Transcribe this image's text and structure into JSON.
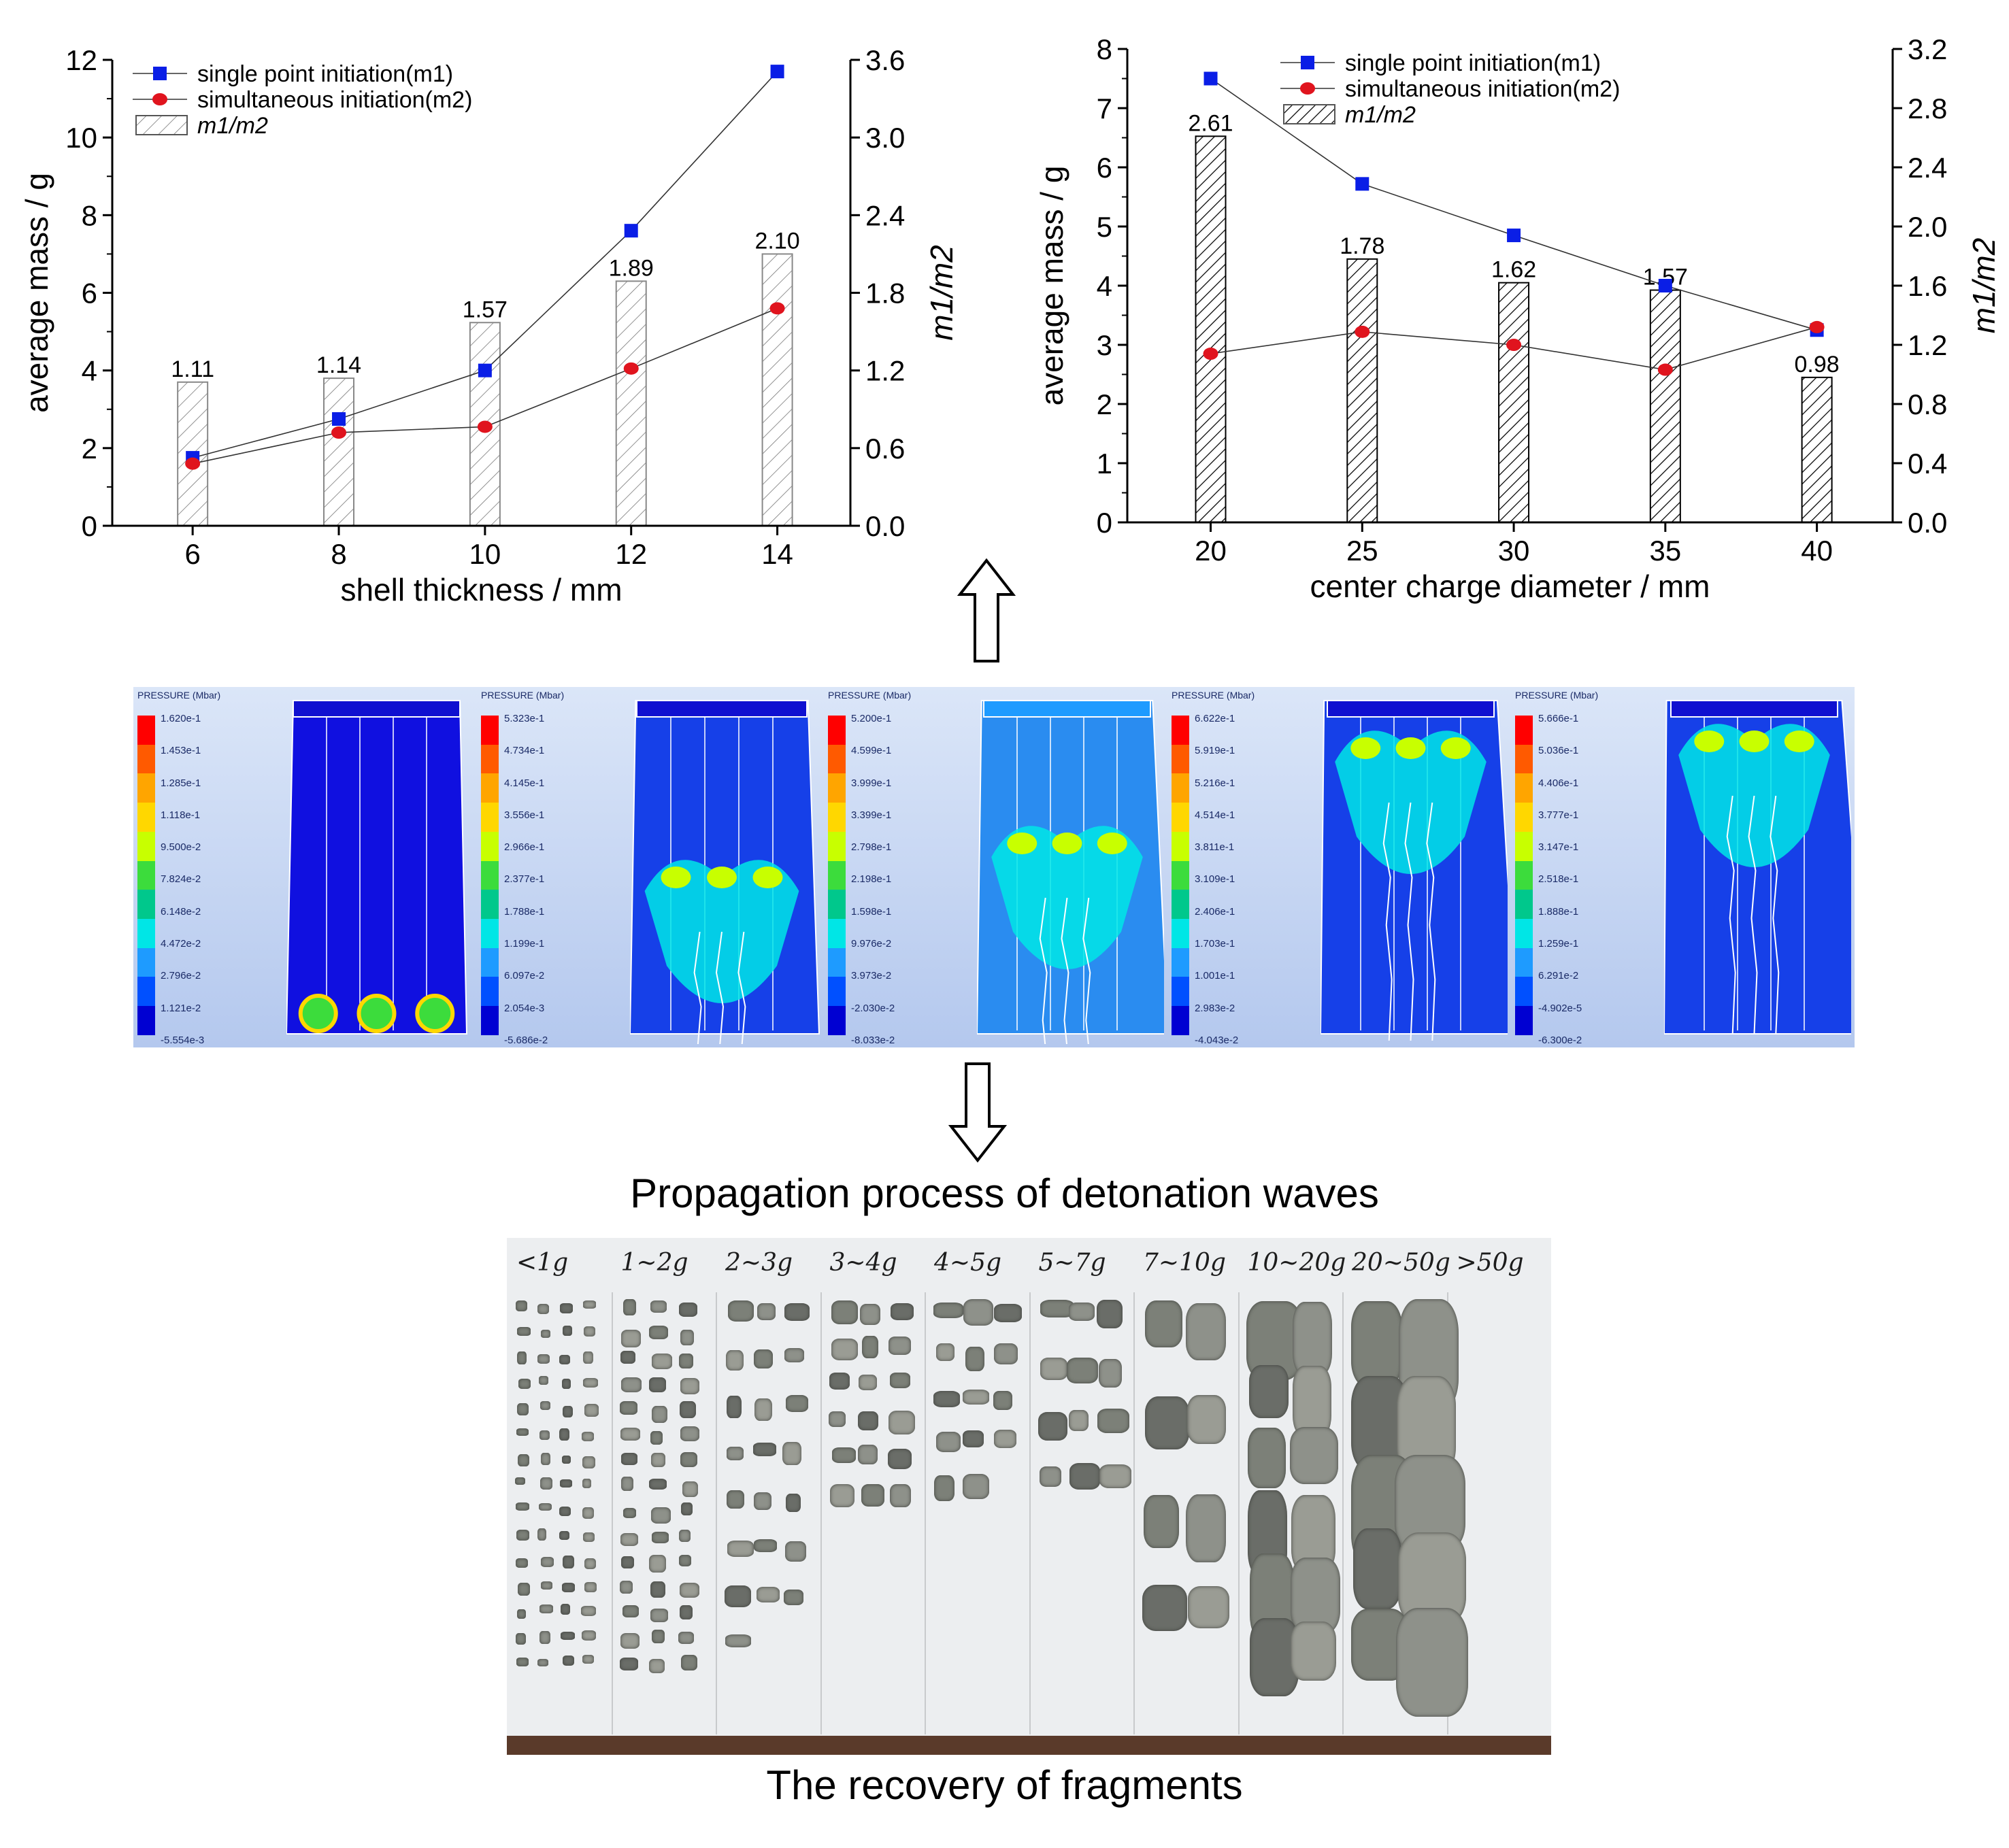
{
  "chart_data": [
    {
      "type": "bar+line",
      "xlabel": "shell thickness / mm",
      "ylabel": "average mass / g",
      "y2label": "m1/m2",
      "categories": [
        6,
        8,
        10,
        12,
        14
      ],
      "ylim": [
        0,
        12
      ],
      "y2lim": [
        0,
        3.6
      ],
      "yticks": [
        "0",
        "2",
        "4",
        "6",
        "8",
        "10",
        "12"
      ],
      "y2ticks": [
        "0.0",
        "0.6",
        "1.2",
        "1.8",
        "2.4",
        "3.0",
        "3.6"
      ],
      "xticks": [
        "6",
        "8",
        "10",
        "12",
        "14"
      ],
      "series": [
        {
          "name": "single point initiation(m1)",
          "kind": "line",
          "marker": "square",
          "color": "#0a1ee6",
          "axis": "left",
          "values": [
            1.75,
            2.75,
            4.0,
            7.6,
            11.7
          ]
        },
        {
          "name": "simultaneous initiation(m2)",
          "kind": "line",
          "marker": "circle",
          "color": "#e0141e",
          "axis": "left",
          "values": [
            1.6,
            2.4,
            2.55,
            4.05,
            5.6
          ]
        },
        {
          "name": "m1/m2",
          "kind": "bar",
          "pattern": "light-hatch",
          "axis": "right",
          "values": [
            1.11,
            1.14,
            1.57,
            1.89,
            2.1
          ],
          "labels": [
            "1.11",
            "1.14",
            "1.57",
            "1.89",
            "2.10"
          ]
        }
      ],
      "legend": [
        "single point initiation(m1)",
        "simultaneous initiation(m2)",
        "m1/m2"
      ],
      "legend_placement": "top-left"
    },
    {
      "type": "bar+line",
      "xlabel": "center charge diameter / mm",
      "ylabel": "average mass / g",
      "y2label": "m1/m2",
      "categories": [
        20,
        25,
        30,
        35,
        40
      ],
      "ylim": [
        0,
        8
      ],
      "y2lim": [
        0,
        3.2
      ],
      "yticks": [
        "0",
        "1",
        "2",
        "3",
        "4",
        "5",
        "6",
        "7",
        "8"
      ],
      "y2ticks": [
        "0.0",
        "0.4",
        "0.8",
        "1.2",
        "1.6",
        "2.0",
        "2.4",
        "2.8",
        "3.2"
      ],
      "xticks": [
        "20",
        "25",
        "30",
        "35",
        "40"
      ],
      "series": [
        {
          "name": "single point initiation(m1)",
          "kind": "line",
          "marker": "square",
          "color": "#0a1ee6",
          "axis": "left",
          "values": [
            7.5,
            5.72,
            4.85,
            4.0,
            3.25
          ]
        },
        {
          "name": "simultaneous initiation(m2)",
          "kind": "line",
          "marker": "circle",
          "color": "#e0141e",
          "axis": "left",
          "values": [
            2.85,
            3.22,
            3.0,
            2.58,
            3.3
          ]
        },
        {
          "name": "m1/m2",
          "kind": "bar",
          "pattern": "dense-hatch",
          "axis": "right",
          "values": [
            2.61,
            1.78,
            1.62,
            1.57,
            0.98
          ],
          "labels": [
            "2.61",
            "1.78",
            "1.62",
            "1.57",
            "0.98"
          ]
        }
      ],
      "legend": [
        "single point initiation(m1)",
        "simultaneous initiation(m2)",
        "m1/m2"
      ],
      "legend_placement": "top-left"
    }
  ],
  "simulation": {
    "panels": [
      {
        "title": "PRESSURE (Mbar)",
        "values": [
          "1.620e-1",
          "1.453e-1",
          "1.285e-1",
          "1.118e-1",
          "9.500e-2",
          "7.824e-2",
          "6.148e-2",
          "4.472e-2",
          "2.796e-2",
          "1.121e-2",
          "-5.554e-3"
        ]
      },
      {
        "title": "PRESSURE (Mbar)",
        "values": [
          "5.323e-1",
          "4.734e-1",
          "4.145e-1",
          "3.556e-1",
          "2.966e-1",
          "2.377e-1",
          "1.788e-1",
          "1.199e-1",
          "6.097e-2",
          "2.054e-3",
          "-5.686e-2"
        ]
      },
      {
        "title": "PRESSURE (Mbar)",
        "values": [
          "5.200e-1",
          "4.599e-1",
          "3.999e-1",
          "3.399e-1",
          "2.798e-1",
          "2.198e-1",
          "1.598e-1",
          "9.976e-2",
          "3.973e-2",
          "-2.030e-2",
          "-8.033e-2"
        ]
      },
      {
        "title": "PRESSURE (Mbar)",
        "values": [
          "6.622e-1",
          "5.919e-1",
          "5.216e-1",
          "4.514e-1",
          "3.811e-1",
          "3.109e-1",
          "2.406e-1",
          "1.703e-1",
          "1.001e-1",
          "2.983e-2",
          "-4.043e-2"
        ]
      },
      {
        "title": "PRESSURE (Mbar)",
        "values": [
          "5.666e-1",
          "5.036e-1",
          "4.406e-1",
          "3.777e-1",
          "3.147e-1",
          "2.518e-1",
          "1.888e-1",
          "1.259e-1",
          "6.291e-2",
          "-4.902e-5",
          "-6.300e-2"
        ]
      }
    ],
    "colors": [
      "#ff0000",
      "#ff5a00",
      "#ffa500",
      "#ffd700",
      "#c8ff00",
      "#3cdc3c",
      "#00c88c",
      "#00e6e6",
      "#1e9bff",
      "#0050ff",
      "#0000d2"
    ]
  },
  "captions": {
    "propagation": "Propagation process of detonation waves",
    "recovery": "The recovery of fragments"
  },
  "photo_labels": [
    "<1g",
    "1~2g",
    "2~3g",
    "3~4g",
    "4~5g",
    "5~7g",
    "7~10g",
    "10~20g",
    "20~50g",
    ">50g"
  ]
}
